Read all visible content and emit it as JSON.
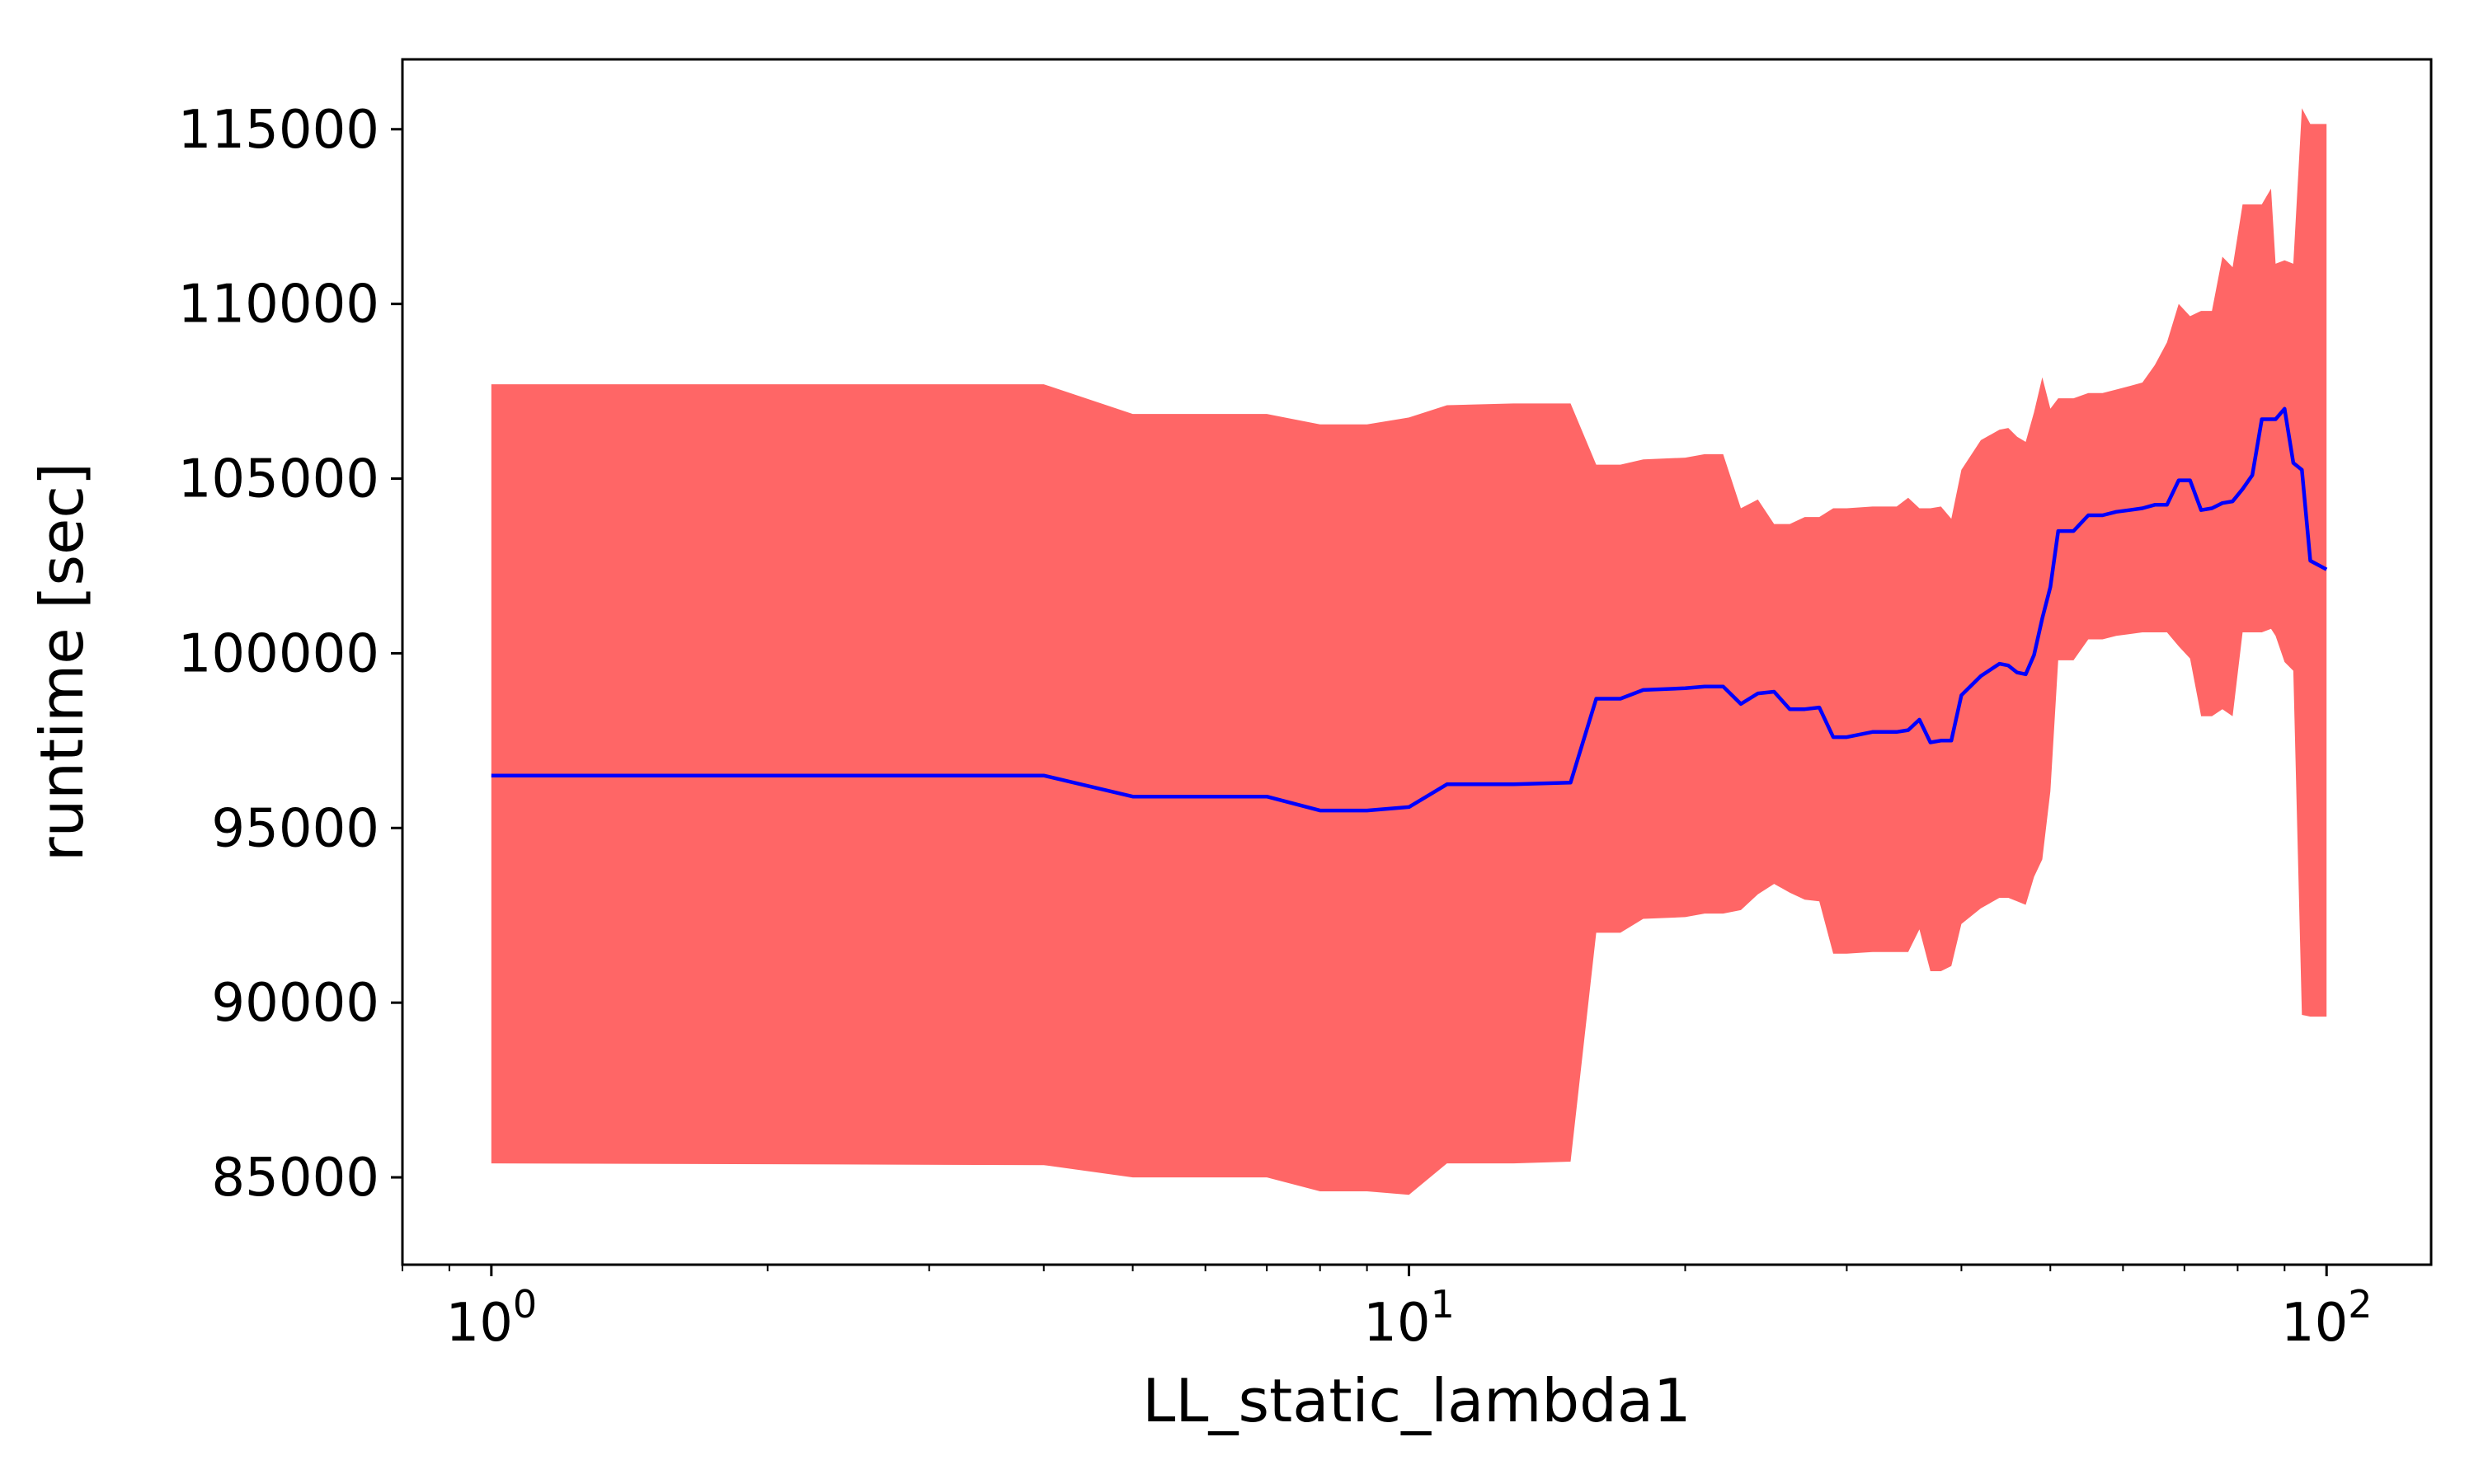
{
  "chart_data": {
    "type": "line",
    "xlabel": "LL_static_lambda1",
    "ylabel": "runtime [sec]",
    "xscale": "log",
    "xlim": [
      0.8,
      130
    ],
    "ylim": [
      82500,
      117000
    ],
    "xticks": [
      {
        "value": 1,
        "base": "10",
        "exp": "0"
      },
      {
        "value": 10,
        "base": "10",
        "exp": "1"
      },
      {
        "value": 100,
        "base": "10",
        "exp": "2"
      }
    ],
    "yticks": [
      85000,
      90000,
      95000,
      100000,
      105000,
      110000,
      115000
    ],
    "grid": false,
    "colors": {
      "line": "#0000ff",
      "band": "#ff6666"
    },
    "series": [
      {
        "x": [
          1,
          4,
          5,
          7,
          8,
          9,
          10,
          11,
          13,
          15,
          16,
          17,
          18,
          20,
          21,
          22,
          23,
          24,
          25,
          26,
          27,
          28,
          29,
          30,
          32,
          34,
          35,
          36,
          37,
          38,
          39,
          40,
          42,
          44,
          45,
          46,
          47,
          48,
          49,
          50,
          51,
          53,
          55,
          57,
          59,
          61,
          63,
          65,
          67,
          69,
          71,
          73,
          75,
          77,
          79,
          81,
          83,
          85,
          87,
          88,
          90,
          92,
          94,
          96,
          100
        ],
        "y": [
          96500,
          96500,
          95900,
          95900,
          95500,
          95500,
          95600,
          96250,
          96250,
          96300,
          98700,
          98700,
          98950,
          99000,
          99050,
          99050,
          98550,
          98850,
          98900,
          98400,
          98400,
          98450,
          97600,
          97600,
          97750,
          97750,
          97800,
          98100,
          97450,
          97500,
          97500,
          98800,
          99350,
          99700,
          99650,
          99450,
          99400,
          99950,
          101000,
          101900,
          103500,
          103500,
          103950,
          103950,
          104050,
          104100,
          104150,
          104250,
          104250,
          104950,
          104950,
          104100,
          104150,
          104300,
          104350,
          104700,
          105100,
          106700,
          106700,
          106700,
          107000,
          105450,
          105250,
          102650,
          102400
        ]
      }
    ],
    "band": {
      "upper": [
        107700,
        107700,
        106850,
        106850,
        106550,
        106550,
        106750,
        107100,
        107150,
        107150,
        105400,
        105400,
        105550,
        105600,
        105700,
        105700,
        104150,
        104400,
        103700,
        103700,
        103900,
        103900,
        104150,
        104150,
        104200,
        104200,
        104450,
        104150,
        104150,
        104200,
        103850,
        105250,
        106100,
        106400,
        106450,
        106200,
        106050,
        106900,
        107900,
        107000,
        107300,
        107300,
        107450,
        107450,
        107550,
        107650,
        107750,
        108250,
        108900,
        110000,
        109650,
        109800,
        109800,
        111350,
        111050,
        112850,
        112850,
        112850,
        113300,
        111150,
        111250,
        111150,
        115600,
        115150,
        115150
      ],
      "lower": [
        85400,
        85350,
        85000,
        85000,
        84600,
        84600,
        84500,
        85400,
        85400,
        85450,
        92000,
        92000,
        92400,
        92450,
        92550,
        92550,
        92650,
        93100,
        93400,
        93150,
        92950,
        92900,
        91400,
        91400,
        91450,
        91450,
        91450,
        92100,
        90900,
        90900,
        91050,
        92250,
        92700,
        93000,
        93000,
        92900,
        92800,
        93600,
        94100,
        96050,
        99800,
        99800,
        100400,
        100400,
        100500,
        100550,
        100600,
        100600,
        100600,
        100200,
        99850,
        98200,
        98200,
        98400,
        98200,
        100600,
        100600,
        100600,
        100700,
        100500,
        99750,
        99500,
        89650,
        89600,
        89600
      ]
    }
  }
}
